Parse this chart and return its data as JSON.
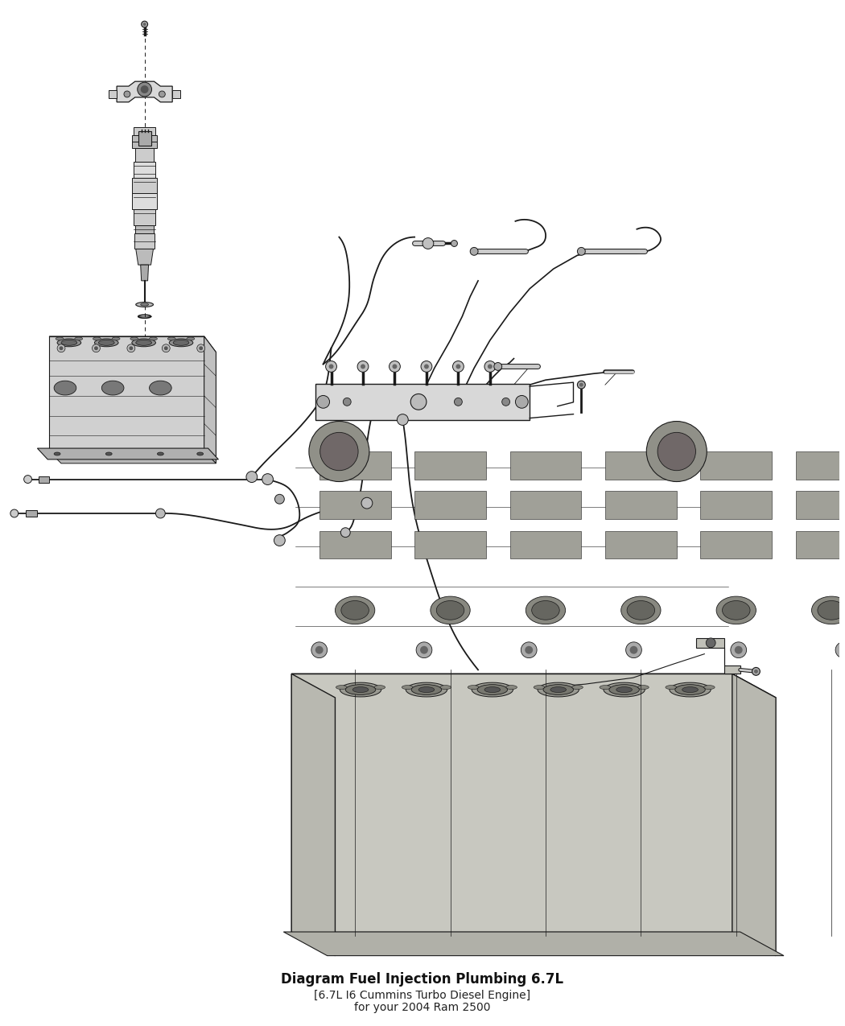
{
  "background_color": "#ffffff",
  "line_color": "#1a1a1a",
  "title": "Diagram Fuel Injection Plumbing 6.7L",
  "subtitle": "[6.7L I6 Cummins Turbo Diesel Engine]",
  "caption": "for your 2004 Ram 2500",
  "figsize": [
    10.5,
    12.75
  ],
  "dpi": 100
}
